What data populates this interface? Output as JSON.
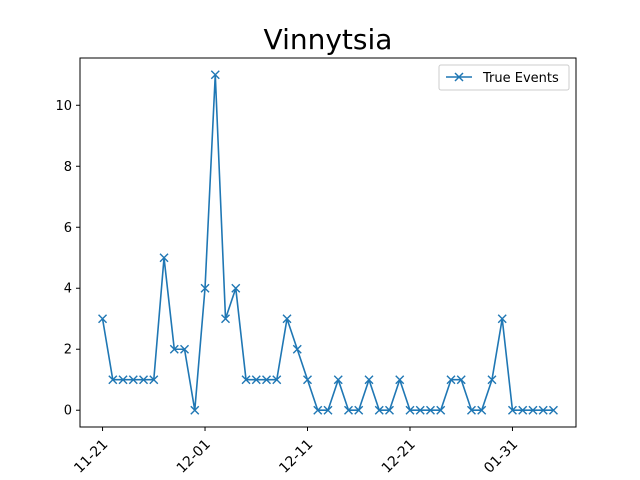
{
  "chart_data": {
    "type": "line",
    "title": "Vinnytsia",
    "xlabel": "",
    "ylabel": "",
    "ylim": [
      -0.55,
      11.55
    ],
    "yticks": [
      0,
      2,
      4,
      6,
      8,
      10
    ],
    "xticks": [
      {
        "label": "11-21",
        "index": 0
      },
      {
        "label": "12-01",
        "index": 10
      },
      {
        "label": "12-11",
        "index": 20
      },
      {
        "label": "12-21",
        "index": 30
      },
      {
        "label": "01-31",
        "index": 40
      }
    ],
    "series": [
      {
        "name": "True Events",
        "color": "#1f77b4",
        "marker": "x",
        "values": [
          3,
          1,
          1,
          1,
          1,
          1,
          5,
          2,
          2,
          0,
          4,
          11,
          3,
          4,
          1,
          1,
          1,
          1,
          3,
          2,
          1,
          0,
          0,
          1,
          0,
          0,
          1,
          0,
          0,
          1,
          0,
          0,
          0,
          0,
          1,
          1,
          0,
          0,
          1,
          3,
          0,
          0,
          0,
          0,
          0
        ]
      }
    ],
    "legend": "top-right",
    "grid": false
  }
}
